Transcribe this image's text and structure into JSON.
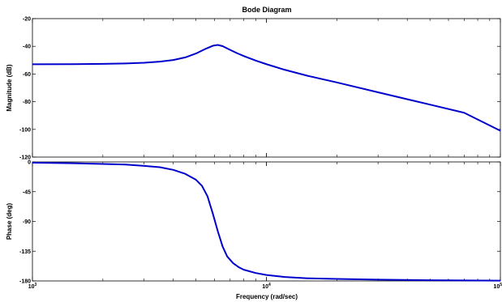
{
  "chart_data": {
    "type": "line",
    "title": "Bode Diagram",
    "xlabel": "Frequency  (rad/sec)",
    "x_scale": "log",
    "x_ticks": [
      1000,
      10000,
      100000
    ],
    "x_tick_labels": [
      {
        "base": "10",
        "exp": "3"
      },
      {
        "base": "10",
        "exp": "4"
      },
      {
        "base": "10",
        "exp": "5"
      }
    ],
    "series_color": "#0000cc",
    "panels": [
      {
        "id": "magnitude",
        "ylabel": "Magnitude (dB)",
        "ylim": [
          -120,
          -20
        ],
        "yticks": [
          -20,
          -40,
          -60,
          -80,
          -100,
          -120
        ],
        "ytick_labels": [
          "-20",
          "-40",
          "-60",
          "-80",
          "-100",
          "-120"
        ],
        "x": [
          1000,
          1500,
          2000,
          2500,
          3000,
          3500,
          4000,
          4500,
          5000,
          5500,
          5900,
          6200,
          6500,
          7000,
          7500,
          8000,
          9000,
          10000,
          12000,
          15000,
          20000,
          30000,
          50000,
          70000,
          100000
        ],
        "y": [
          -53,
          -52.9,
          -52.7,
          -52.4,
          -51.9,
          -51.1,
          -49.9,
          -48.0,
          -45.2,
          -41.8,
          -39.6,
          -39.0,
          -39.9,
          -42.6,
          -45.0,
          -47.0,
          -50.3,
          -52.9,
          -57.0,
          -61.3,
          -66.1,
          -73.2,
          -82.1,
          -88.0,
          -101
        ]
      },
      {
        "id": "phase",
        "ylabel": "Phase (deg)",
        "ylim": [
          -180,
          0
        ],
        "yticks": [
          0,
          -45,
          -90,
          -135,
          -180
        ],
        "ytick_labels": [
          "0",
          "-45",
          "-90",
          "-135",
          "-180"
        ],
        "x": [
          1000,
          1500,
          2000,
          2500,
          3000,
          3500,
          4000,
          4500,
          5000,
          5300,
          5600,
          5900,
          6200,
          6500,
          6800,
          7200,
          7600,
          8000,
          9000,
          10000,
          12000,
          15000,
          20000,
          30000,
          50000,
          100000
        ],
        "y": [
          -1,
          -2,
          -3,
          -4,
          -6,
          -8,
          -12,
          -18,
          -27,
          -36,
          -52,
          -78,
          -105,
          -128,
          -143,
          -153,
          -159,
          -163,
          -168,
          -171,
          -174,
          -176,
          -177,
          -178,
          -179,
          -179.5
        ]
      }
    ]
  }
}
